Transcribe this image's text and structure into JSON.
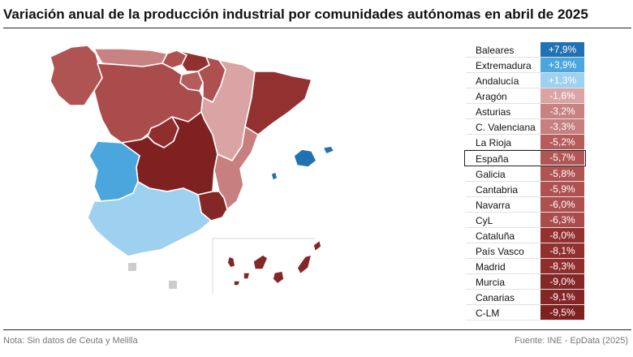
{
  "title": "Variación anual de la producción industrial por comunidades autónomas en abril de 2025",
  "footer": {
    "note": "Nota: Sin datos de Ceuta y Melilla",
    "source": "Fuente: INE - EpData (2025)"
  },
  "colors": {
    "strong_blue": "#2271b3",
    "mid_blue": "#4ba6de",
    "light_blue": "#9ed0ef",
    "light_red": "#d9a0a0",
    "mid_red": "#b85454",
    "dark_red": "#8f2b2b",
    "darkest_red": "#6e1a1a",
    "no_data": "#cccccc"
  },
  "table": {
    "rows": [
      {
        "name": "Baleares",
        "value": "+7,9%",
        "color": "#2271b3",
        "highlight": false
      },
      {
        "name": "Extremadura",
        "value": "+3,9%",
        "color": "#4ba6de",
        "highlight": false
      },
      {
        "name": "Andalucía",
        "value": "+1,3%",
        "color": "#9ed0ef",
        "highlight": false
      },
      {
        "name": "Aragón",
        "value": "-1,6%",
        "color": "#dba4a4",
        "highlight": false
      },
      {
        "name": "Asturias",
        "value": "-3,2%",
        "color": "#c98282",
        "highlight": false
      },
      {
        "name": "C. Valenciana",
        "value": "-3,3%",
        "color": "#c77f7f",
        "highlight": false
      },
      {
        "name": "La Rioja",
        "value": "-5,2%",
        "color": "#b65c5c",
        "highlight": false
      },
      {
        "name": "España",
        "value": "-5,7%",
        "color": "#b25555",
        "highlight": true
      },
      {
        "name": "Galicia",
        "value": "-5,8%",
        "color": "#b05353",
        "highlight": false
      },
      {
        "name": "Cantabria",
        "value": "-5,9%",
        "color": "#af5151",
        "highlight": false
      },
      {
        "name": "Navarra",
        "value": "-6,0%",
        "color": "#ae5050",
        "highlight": false
      },
      {
        "name": "CyL",
        "value": "-6,3%",
        "color": "#ab4c4c",
        "highlight": false
      },
      {
        "name": "Cataluña",
        "value": "-8,0%",
        "color": "#933131",
        "highlight": false
      },
      {
        "name": "País Vasco",
        "value": "-8,1%",
        "color": "#923030",
        "highlight": false
      },
      {
        "name": "Madrid",
        "value": "-8,3%",
        "color": "#902e2e",
        "highlight": false
      },
      {
        "name": "Murcia",
        "value": "-9,0%",
        "color": "#862727",
        "highlight": false
      },
      {
        "name": "Canarias",
        "value": "-9,1%",
        "color": "#852626",
        "highlight": false
      },
      {
        "name": "C-LM",
        "value": "-9,5%",
        "color": "#7f2121",
        "highlight": false
      }
    ]
  }
}
